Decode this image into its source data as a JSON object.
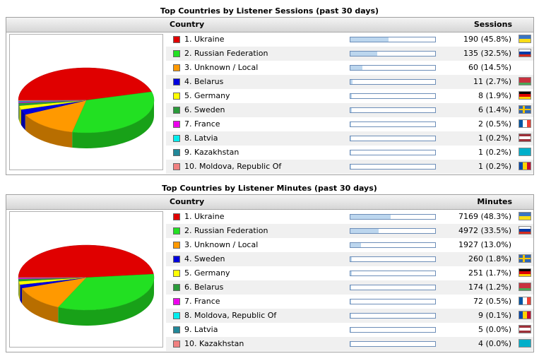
{
  "panels": [
    {
      "title": "Top Countries by Listener Sessions (past 30 days)",
      "col_country": "Country",
      "col_metric": "Sessions",
      "rows": [
        {
          "label": "1. Ukraine",
          "value_text": "190 (45.8%)",
          "pct": 45.8,
          "color": "#e00000",
          "flag": "ukraine-flag-icon"
        },
        {
          "label": "2. Russian Federation",
          "value_text": "135 (32.5%)",
          "pct": 32.5,
          "color": "#22e022",
          "flag": "russia-flag-icon"
        },
        {
          "label": "3. Unknown / Local",
          "value_text": "60 (14.5%)",
          "pct": 14.5,
          "color": "#ff9900",
          "flag": ""
        },
        {
          "label": "4. Belarus",
          "value_text": "11 (2.7%)",
          "pct": 2.7,
          "color": "#0000dd",
          "flag": "belarus-flag-icon"
        },
        {
          "label": "5. Germany",
          "value_text": "8 (1.9%)",
          "pct": 1.9,
          "color": "#ffff00",
          "flag": "germany-flag-icon"
        },
        {
          "label": "6. Sweden",
          "value_text": "6 (1.4%)",
          "pct": 1.4,
          "color": "#2a9a3a",
          "flag": "sweden-flag-icon"
        },
        {
          "label": "7. France",
          "value_text": "2 (0.5%)",
          "pct": 0.5,
          "color": "#ee00ee",
          "flag": "france-flag-icon"
        },
        {
          "label": "8. Latvia",
          "value_text": "1 (0.2%)",
          "pct": 0.2,
          "color": "#00eeee",
          "flag": "latvia-flag-icon"
        },
        {
          "label": "9. Kazakhstan",
          "value_text": "1 (0.2%)",
          "pct": 0.2,
          "color": "#228899",
          "flag": "kazakhstan-flag-icon"
        },
        {
          "label": "10. Moldova, Republic Of",
          "value_text": "1 (0.2%)",
          "pct": 0.2,
          "color": "#f08080",
          "flag": "moldova-flag-icon"
        }
      ]
    },
    {
      "title": "Top Countries by Listener Minutes (past 30 days)",
      "col_country": "Country",
      "col_metric": "Minutes",
      "rows": [
        {
          "label": "1. Ukraine",
          "value_text": "7169 (48.3%)",
          "pct": 48.3,
          "color": "#e00000",
          "flag": "ukraine-flag-icon"
        },
        {
          "label": "2. Russian Federation",
          "value_text": "4972 (33.5%)",
          "pct": 33.5,
          "color": "#22e022",
          "flag": "russia-flag-icon"
        },
        {
          "label": "3. Unknown / Local",
          "value_text": "1927 (13.0%)",
          "pct": 13.0,
          "color": "#ff9900",
          "flag": ""
        },
        {
          "label": "4. Sweden",
          "value_text": "260 (1.8%)",
          "pct": 1.8,
          "color": "#0000dd",
          "flag": "sweden-flag-icon"
        },
        {
          "label": "5. Germany",
          "value_text": "251 (1.7%)",
          "pct": 1.7,
          "color": "#ffff00",
          "flag": "germany-flag-icon"
        },
        {
          "label": "6. Belarus",
          "value_text": "174 (1.2%)",
          "pct": 1.2,
          "color": "#2a9a3a",
          "flag": "belarus-flag-icon"
        },
        {
          "label": "7. France",
          "value_text": "72 (0.5%)",
          "pct": 0.5,
          "color": "#ee00ee",
          "flag": "france-flag-icon"
        },
        {
          "label": "8. Moldova, Republic Of",
          "value_text": "9 (0.1%)",
          "pct": 0.1,
          "color": "#00eeee",
          "flag": "moldova-flag-icon"
        },
        {
          "label": "9. Latvia",
          "value_text": "5 (0.0%)",
          "pct": 0.0,
          "color": "#228899",
          "flag": "latvia-flag-icon"
        },
        {
          "label": "10. Kazakhstan",
          "value_text": "4 (0.0%)",
          "pct": 0.0,
          "color": "#f08080",
          "flag": "kazakhstan-flag-icon"
        }
      ]
    }
  ],
  "chart_data": [
    {
      "type": "pie",
      "title": "Top Countries by Listener Sessions (past 30 days)",
      "categories": [
        "1. Ukraine",
        "2. Russian Federation",
        "3. Unknown / Local",
        "4. Belarus",
        "5. Germany",
        "6. Sweden",
        "7. France",
        "8. Latvia",
        "9. Kazakhstan",
        "10. Moldova, Republic Of"
      ],
      "values": [
        190,
        135,
        60,
        11,
        8,
        6,
        2,
        1,
        1,
        1
      ],
      "percent": [
        45.8,
        32.5,
        14.5,
        2.7,
        1.9,
        1.4,
        0.5,
        0.2,
        0.2,
        0.2
      ]
    },
    {
      "type": "pie",
      "title": "Top Countries by Listener Minutes (past 30 days)",
      "categories": [
        "1. Ukraine",
        "2. Russian Federation",
        "3. Unknown / Local",
        "4. Sweden",
        "5. Germany",
        "6. Belarus",
        "7. France",
        "8. Moldova, Republic Of",
        "9. Latvia",
        "10. Kazakhstan"
      ],
      "values": [
        7169,
        4972,
        1927,
        260,
        251,
        174,
        72,
        9,
        5,
        4
      ],
      "percent": [
        48.3,
        33.5,
        13.0,
        1.8,
        1.7,
        1.2,
        0.5,
        0.1,
        0.0,
        0.0
      ]
    }
  ]
}
